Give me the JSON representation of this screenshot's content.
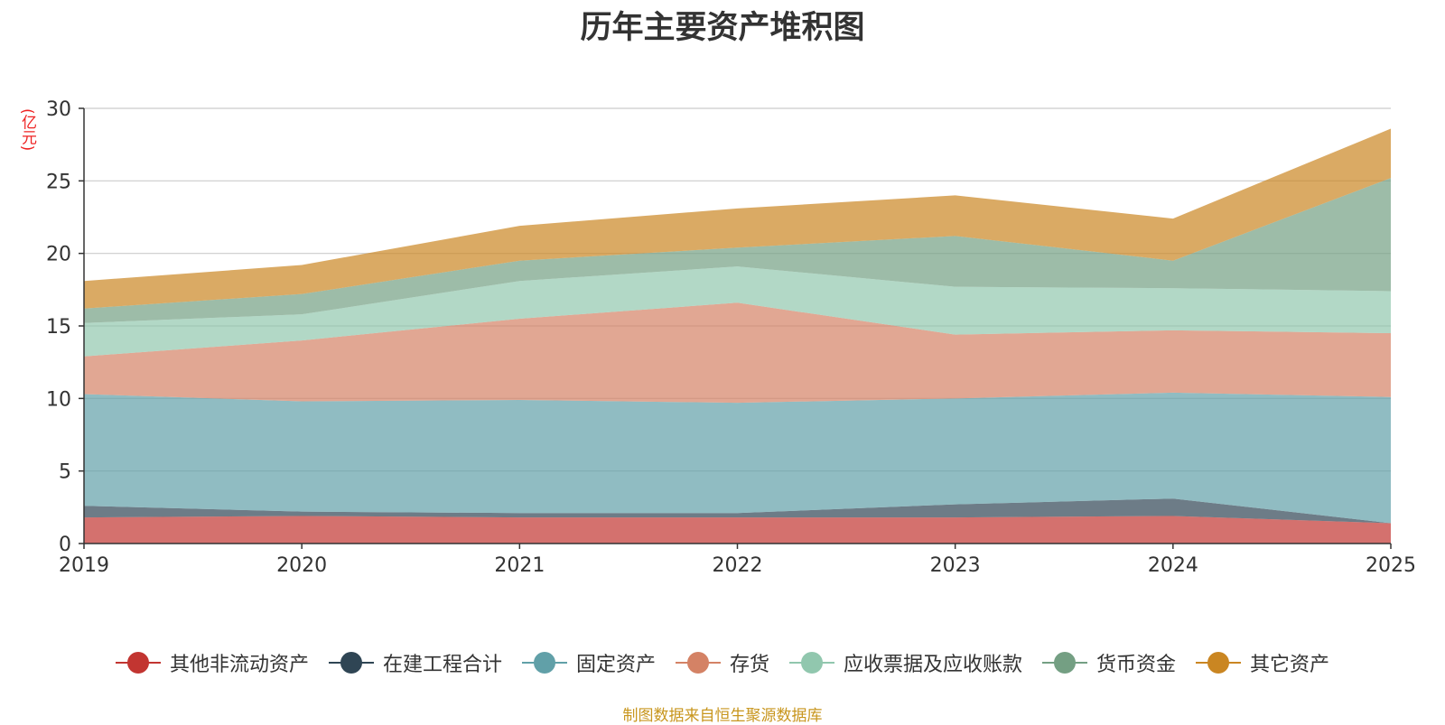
{
  "chart_data": {
    "type": "area",
    "stacked": true,
    "title": "历年主要资产堆积图",
    "ylabel": "(亿元)",
    "xlabel": "",
    "categories": [
      "2019",
      "2020",
      "2021",
      "2022",
      "2023",
      "2024",
      "2025"
    ],
    "ylim": [
      0,
      30
    ],
    "yticks": [
      0,
      5,
      10,
      15,
      20,
      25,
      30
    ],
    "grid": true,
    "legend_position": "bottom",
    "series": [
      {
        "name": "其他非流动资产",
        "color": "#c23531",
        "values": [
          1.8,
          1.9,
          1.8,
          1.8,
          1.8,
          1.9,
          1.4
        ]
      },
      {
        "name": "在建工程合计",
        "color": "#2f4554",
        "values": [
          0.8,
          0.3,
          0.3,
          0.3,
          0.9,
          1.2,
          0.0
        ]
      },
      {
        "name": "固定资产",
        "color": "#61a0a8",
        "values": [
          7.7,
          7.6,
          7.8,
          7.6,
          7.3,
          7.3,
          8.7
        ]
      },
      {
        "name": "存货",
        "color": "#d48265",
        "values": [
          2.6,
          4.2,
          5.6,
          6.9,
          4.4,
          4.3,
          4.4
        ]
      },
      {
        "name": "应收票据及应收账款",
        "color": "#91c7ae",
        "values": [
          2.3,
          1.8,
          2.6,
          2.5,
          3.3,
          2.9,
          2.9
        ]
      },
      {
        "name": "货币资金",
        "color": "#749f83",
        "values": [
          1.0,
          1.4,
          1.4,
          1.3,
          3.5,
          1.9,
          7.8
        ]
      },
      {
        "name": "其它资产",
        "color": "#ca8622",
        "values": [
          1.9,
          2.0,
          2.4,
          2.7,
          2.8,
          2.9,
          3.4
        ]
      }
    ]
  },
  "source_note": "制图数据来自恒生聚源数据库"
}
